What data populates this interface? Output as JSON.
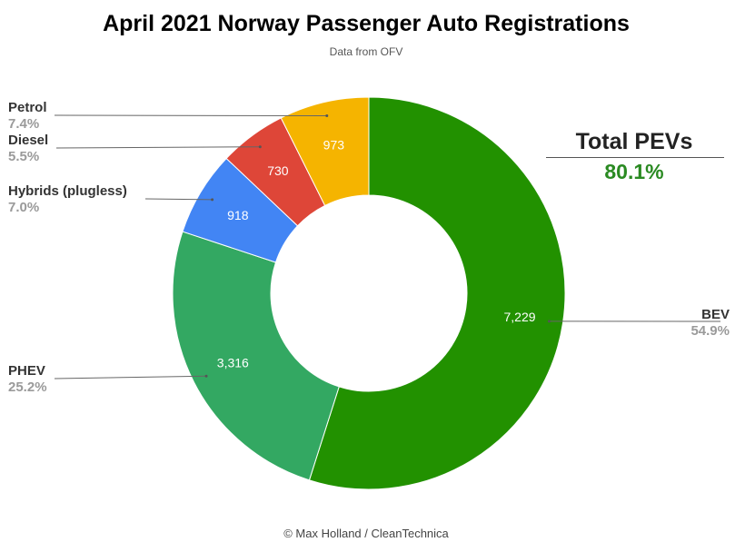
{
  "header": {
    "title": "April 2021 Norway Passenger Auto Registrations",
    "subtitle": "Data from OFV"
  },
  "annotation": {
    "label": "Total PEVs",
    "value": "80.1%",
    "color": "#2a8a22"
  },
  "footer": {
    "credit": "© Max Holland / CleanTechnica"
  },
  "chart_data": {
    "type": "pie",
    "style": "donut",
    "title": "April 2021 Norway Passenger Auto Registrations",
    "subtitle": "Data from OFV",
    "slices": [
      {
        "name": "BEV",
        "value": 7229,
        "value_label": "7,229",
        "percent_label": "54.9%",
        "color": "#229100"
      },
      {
        "name": "PHEV",
        "value": 3316,
        "value_label": "3,316",
        "percent_label": "25.2%",
        "color": "#33a862"
      },
      {
        "name": "Hybrids (plugless)",
        "value": 918,
        "value_label": "918",
        "percent_label": "7.0%",
        "color": "#4285f4"
      },
      {
        "name": "Diesel",
        "value": 730,
        "value_label": "730",
        "percent_label": "5.5%",
        "color": "#de4638"
      },
      {
        "name": "Petrol",
        "value": 973,
        "value_label": "973",
        "percent_label": "7.4%",
        "color": "#f5b400"
      }
    ]
  }
}
